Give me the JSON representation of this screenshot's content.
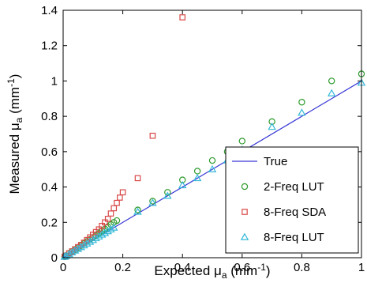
{
  "chart_data": {
    "type": "scatter",
    "xlabel": "Expected μ_a (mm^-1)",
    "ylabel": "Measured μ_a (mm^-1)",
    "xlim": [
      0,
      1
    ],
    "ylim": [
      0,
      1.4
    ],
    "x_ticks": [
      "0",
      "0.2",
      "0.4",
      "0.6",
      "0.8",
      "1"
    ],
    "y_ticks": [
      "0",
      "0.2",
      "0.4",
      "0.6",
      "0.8",
      "1",
      "1.2",
      "1.4"
    ],
    "grid": false,
    "legend_position": "bottom-right",
    "series": [
      {
        "name": "True",
        "marker": "line",
        "color": "#3a3ad6",
        "x": [
          0,
          1
        ],
        "y": [
          0,
          1
        ]
      },
      {
        "name": "2-Freq LUT",
        "marker": "circle",
        "color": "#2e9a2e",
        "x": [
          0.005,
          0.01,
          0.02,
          0.03,
          0.04,
          0.05,
          0.06,
          0.07,
          0.08,
          0.09,
          0.1,
          0.11,
          0.12,
          0.13,
          0.14,
          0.15,
          0.16,
          0.17,
          0.18,
          0.25,
          0.3,
          0.35,
          0.4,
          0.45,
          0.5,
          0.55,
          0.6,
          0.7,
          0.8,
          0.9,
          1.0
        ],
        "y": [
          0.005,
          0.012,
          0.025,
          0.035,
          0.045,
          0.057,
          0.068,
          0.08,
          0.092,
          0.103,
          0.115,
          0.125,
          0.138,
          0.15,
          0.162,
          0.175,
          0.188,
          0.2,
          0.21,
          0.27,
          0.32,
          0.37,
          0.44,
          0.49,
          0.55,
          0.6,
          0.66,
          0.77,
          0.88,
          1.0,
          1.04
        ]
      },
      {
        "name": "8-Freq SDA",
        "marker": "square",
        "color": "#d94848",
        "x": [
          0.005,
          0.01,
          0.02,
          0.03,
          0.04,
          0.05,
          0.06,
          0.07,
          0.08,
          0.09,
          0.1,
          0.11,
          0.12,
          0.13,
          0.14,
          0.15,
          0.16,
          0.17,
          0.18,
          0.19,
          0.2,
          0.25,
          0.3,
          0.4
        ],
        "y": [
          0.005,
          0.012,
          0.025,
          0.036,
          0.048,
          0.06,
          0.072,
          0.085,
          0.1,
          0.115,
          0.13,
          0.145,
          0.16,
          0.18,
          0.2,
          0.22,
          0.25,
          0.28,
          0.31,
          0.34,
          0.37,
          0.45,
          0.69,
          1.36
        ]
      },
      {
        "name": "8-Freq LUT",
        "marker": "triangle",
        "color": "#35b8d8",
        "x": [
          0.005,
          0.01,
          0.02,
          0.03,
          0.04,
          0.05,
          0.06,
          0.07,
          0.08,
          0.09,
          0.1,
          0.11,
          0.12,
          0.13,
          0.14,
          0.15,
          0.16,
          0.17,
          0.25,
          0.3,
          0.35,
          0.4,
          0.45,
          0.5,
          0.55,
          0.6,
          0.7,
          0.8,
          0.9,
          1.0
        ],
        "y": [
          0.005,
          0.01,
          0.02,
          0.03,
          0.04,
          0.05,
          0.06,
          0.07,
          0.08,
          0.09,
          0.1,
          0.11,
          0.12,
          0.13,
          0.14,
          0.15,
          0.16,
          0.17,
          0.26,
          0.31,
          0.35,
          0.41,
          0.45,
          0.5,
          0.55,
          0.61,
          0.74,
          0.82,
          0.93,
          0.99
        ]
      }
    ]
  }
}
